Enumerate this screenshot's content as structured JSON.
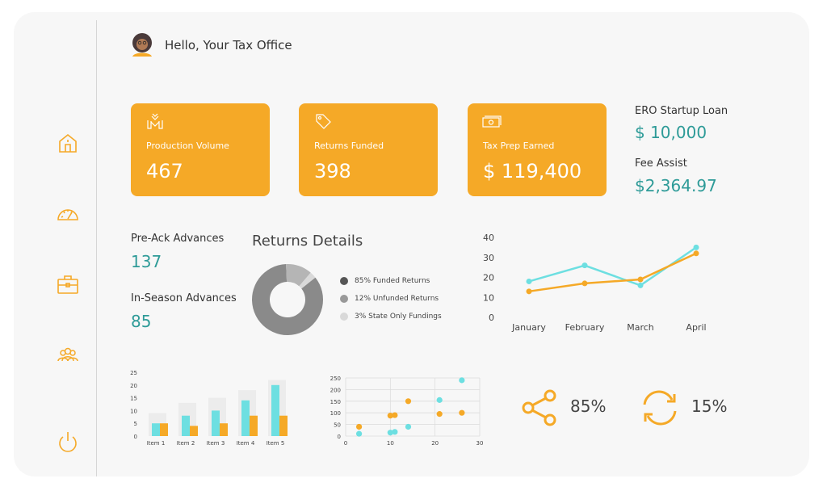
{
  "header": {
    "greeting": "Hello, Your Tax Office"
  },
  "sidebar": {
    "items": [
      {
        "icon": "home-icon"
      },
      {
        "icon": "speedometer-icon"
      },
      {
        "icon": "briefcase-icon"
      },
      {
        "icon": "users-icon"
      },
      {
        "icon": "power-icon"
      }
    ]
  },
  "cards": [
    {
      "label": "Production Volume",
      "value": "467",
      "icon": "handshake-icon"
    },
    {
      "label": "Returns Funded",
      "value": "398",
      "icon": "tag-icon"
    },
    {
      "label": "Tax Prep Earned",
      "value": "$ 119,400",
      "icon": "cash-icon"
    }
  ],
  "side_stats": {
    "ero_label": "ERO Startup Loan",
    "ero_value": "$ 10,000",
    "fee_label": "Fee Assist",
    "fee_value": "$2,364.97"
  },
  "advances": {
    "pre_ack_label": "Pre-Ack Advances",
    "pre_ack_value": "137",
    "in_season_label": "In-Season Advances",
    "in_season_value": "85"
  },
  "returns_details": {
    "title": "Returns Details",
    "legend": [
      {
        "label": "85% Funded Returns",
        "color": "#555555"
      },
      {
        "label": "12% Unfunded Returns",
        "color": "#999999"
      },
      {
        "label": "3% State Only Fundings",
        "color": "#d9d9d9"
      }
    ]
  },
  "share": {
    "value": "85%",
    "icon": "share-icon"
  },
  "refresh": {
    "value": "15%",
    "icon": "refresh-icon"
  },
  "colors": {
    "orange": "#f5a927",
    "teal": "#2e9b98",
    "cyan": "#6ddfe1"
  },
  "chart_data": [
    {
      "type": "pie",
      "labels": [
        "Funded Returns",
        "Unfunded Returns",
        "State Only Fundings"
      ],
      "values": [
        85,
        12,
        3
      ],
      "colors": [
        "#8a8a8a",
        "#b5b5b5",
        "#d9d9d9"
      ]
    },
    {
      "type": "line",
      "categories": [
        "January",
        "February",
        "March",
        "April"
      ],
      "ylim": [
        0,
        40
      ],
      "yticks": [
        0,
        10,
        20,
        30,
        40
      ],
      "series": [
        {
          "values": [
            18,
            26,
            16,
            35
          ],
          "color": "#6ddfe1"
        },
        {
          "values": [
            13,
            17,
            19,
            32
          ],
          "color": "#f5a927"
        }
      ]
    },
    {
      "type": "bar",
      "categories": [
        "Item 1",
        "Item 2",
        "Item 3",
        "Item 4",
        "Item 5"
      ],
      "ylim": [
        0,
        25
      ],
      "yticks": [
        0,
        5,
        10,
        15,
        20,
        25
      ],
      "series": [
        {
          "values": [
            9,
            13,
            15,
            18,
            22
          ],
          "color": "#ececec"
        },
        {
          "values": [
            5,
            8,
            10,
            14,
            20
          ],
          "color": "#6ddfe1"
        },
        {
          "values": [
            5,
            4,
            5,
            8,
            8
          ],
          "color": "#f5a927"
        }
      ]
    },
    {
      "type": "scatter",
      "xlim": [
        0,
        30
      ],
      "ylim": [
        0,
        250
      ],
      "xticks": [
        0,
        10,
        20,
        30
      ],
      "yticks": [
        0,
        50,
        100,
        150,
        200,
        250
      ],
      "series": [
        {
          "color": "#6ddfe1",
          "points": [
            [
              3,
              10
            ],
            [
              10,
              15
            ],
            [
              11,
              18
            ],
            [
              14,
              40
            ],
            [
              21,
              155
            ],
            [
              26,
              240
            ]
          ]
        },
        {
          "color": "#f5a927",
          "points": [
            [
              3,
              40
            ],
            [
              10,
              88
            ],
            [
              11,
              90
            ],
            [
              14,
              150
            ],
            [
              21,
              95
            ],
            [
              26,
              100
            ]
          ]
        }
      ]
    }
  ]
}
